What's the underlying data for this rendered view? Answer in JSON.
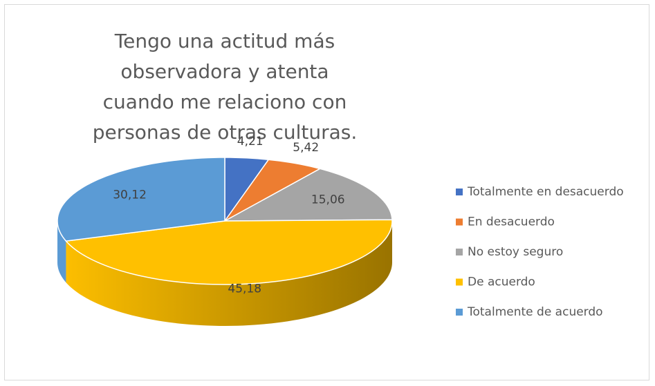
{
  "chart_data": {
    "type": "pie3d",
    "title": "Tengo una actitud más observadora y atenta cuando me relaciono con personas de otras culturas.",
    "categories": [
      "Totalmente en desacuerdo",
      "En desacuerdo",
      "No estoy seguro",
      "De acuerdo",
      "Totalmente de acuerdo"
    ],
    "values": [
      4.21,
      5.42,
      15.06,
      45.18,
      30.12
    ],
    "value_labels": [
      "4,21",
      "5,42",
      "15,06",
      "45,18",
      "30,12"
    ],
    "colors": [
      "#4472c4",
      "#ed7d31",
      "#a5a5a5",
      "#ffc000",
      "#5b9bd5"
    ],
    "legend": "right"
  }
}
